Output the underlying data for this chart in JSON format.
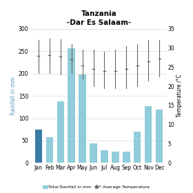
{
  "title": "Tanzania\n-Dar Es Salaam-",
  "months": [
    "Jan",
    "Feb",
    "Mar",
    "Apr",
    "May",
    "Jun",
    "Jul",
    "Aug",
    "Sep",
    "Oct",
    "Nov",
    "Dec"
  ],
  "rainfall": [
    75,
    57,
    138,
    257,
    198,
    44,
    28,
    26,
    25,
    70,
    127,
    119
  ],
  "jan_color": "#3a7ca5",
  "bar_color": "#90ccd9",
  "temp_avg": [
    28.0,
    28.2,
    27.8,
    27.0,
    25.5,
    24.5,
    24.0,
    24.0,
    24.5,
    25.5,
    26.5,
    27.3
  ],
  "temp_high": [
    32.0,
    32.5,
    32.3,
    31.0,
    29.5,
    29.5,
    29.0,
    29.5,
    30.5,
    31.0,
    32.0,
    32.0
  ],
  "temp_low": [
    23.5,
    23.5,
    23.0,
    23.5,
    22.0,
    20.0,
    19.5,
    19.5,
    19.5,
    20.0,
    21.5,
    22.5
  ],
  "ylabel_left": "Rainfall in mm",
  "ylabel_right": "Temperature /°C",
  "legend_rainfall": "Total Rainfall in mm",
  "legend_temp": "* Average Temperature",
  "ylim_left": [
    0,
    300
  ],
  "ylim_right": [
    0,
    35
  ],
  "yticks_left": [
    0,
    50,
    100,
    150,
    200,
    250,
    300
  ],
  "yticks_right": [
    0,
    5,
    10,
    15,
    20,
    25,
    30,
    35
  ],
  "background_color": "#ffffff",
  "grid_color": "#d8d8d8"
}
